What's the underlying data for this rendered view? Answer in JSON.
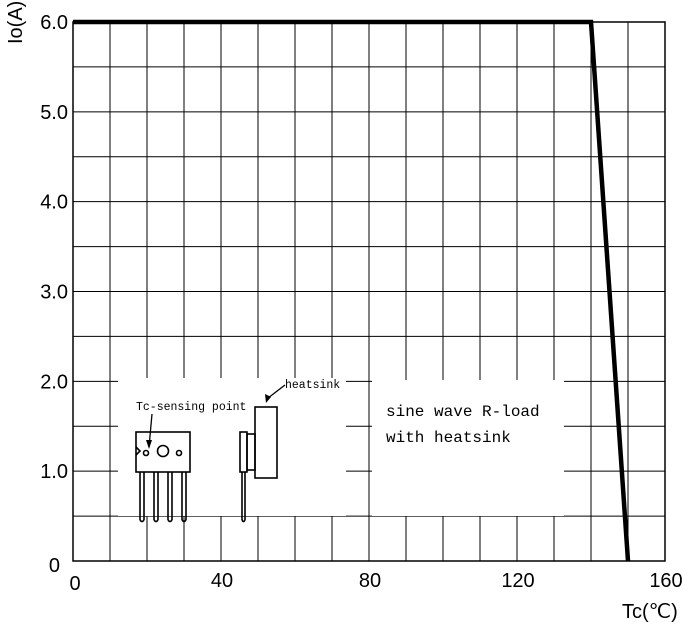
{
  "chart_data": {
    "type": "line",
    "x_label": "Tc(℃)",
    "y_label": "Io(A)",
    "xlim": [
      0,
      160
    ],
    "ylim": [
      0,
      6.0
    ],
    "x_ticks": [
      "0",
      "40",
      "80",
      "120",
      "160"
    ],
    "x_tick_values": [
      0,
      40,
      80,
      120,
      160
    ],
    "y_ticks": [
      "0",
      "1.0",
      "2.0",
      "3.0",
      "4.0",
      "5.0",
      "6.0"
    ],
    "y_tick_values": [
      0,
      1,
      2,
      3,
      4,
      5,
      6
    ],
    "grid": true,
    "x_minor_step": 10,
    "y_minor_step": 0.5,
    "series": [
      {
        "x": [
          0,
          140,
          150
        ],
        "y": [
          6.0,
          6.0,
          0
        ]
      }
    ],
    "annotations": {
      "condition_line1": "sine wave R-load",
      "condition_line2": "with heatsink",
      "sensing_point": "Tc-sensing point",
      "heatsink": "heatsink"
    }
  }
}
